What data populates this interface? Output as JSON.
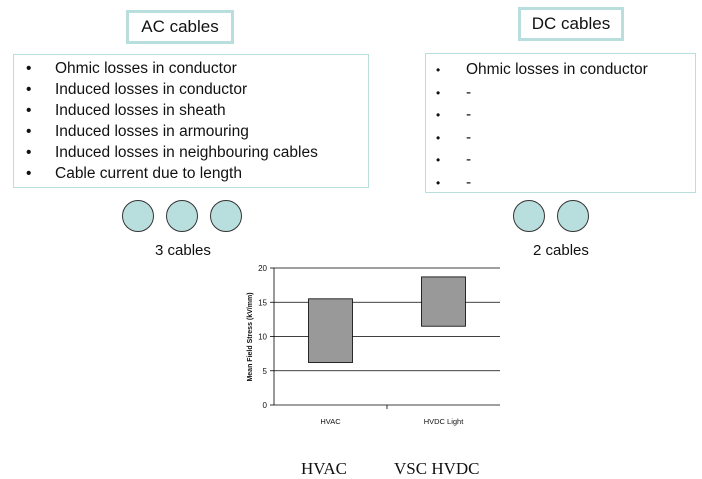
{
  "ac": {
    "title": "AC cables",
    "items": [
      "Ohmic losses in conductor",
      "Induced losses in conductor",
      "Induced losses in sheath",
      "Induced losses in armouring",
      "Induced losses in neighbouring cables",
      "Cable current due to length"
    ],
    "caption": "3 cables"
  },
  "dc": {
    "title": "DC cables",
    "items": [
      "Ohmic losses in conductor",
      "-",
      "-",
      "-",
      "-",
      "-"
    ],
    "caption": "2 cables"
  },
  "bullet_char": "•",
  "colors": {
    "circle_fill": "#b9dede",
    "box_border": "#b9dede",
    "bar_fill": "#999999"
  },
  "chart_data": {
    "type": "bar",
    "ylabel": "Mean Field Stress (kV/mm)",
    "ylim": [
      0,
      20
    ],
    "yticks": [
      "0",
      "5",
      "10",
      "15",
      "20"
    ],
    "categories": [
      "HVAC",
      "HVDC Light"
    ],
    "ranges": [
      [
        6.2,
        15.5
      ],
      [
        11.5,
        18.7
      ]
    ],
    "grid": true
  },
  "bottom_labels": {
    "left": "HVAC",
    "right": "VSC HVDC"
  }
}
